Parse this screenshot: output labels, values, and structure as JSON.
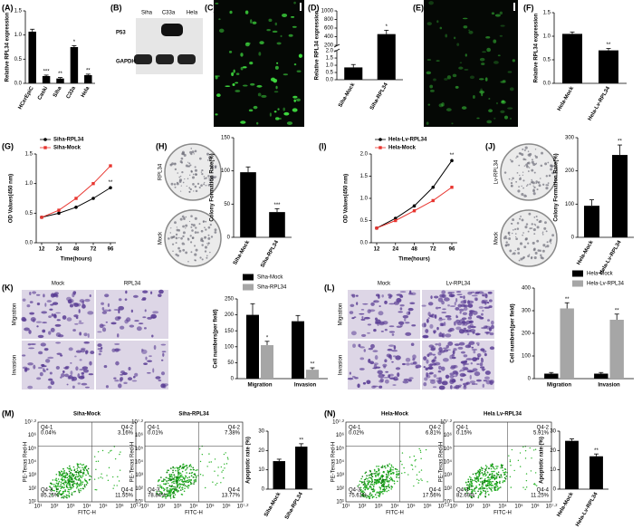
{
  "figure": {
    "panel_labels": [
      "(A)",
      "(B)",
      "(C)",
      "(D)",
      "(E)",
      "(F)",
      "(G)",
      "(H)",
      "(I)",
      "(J)",
      "(K)",
      "(L)",
      "(M)",
      "(N)"
    ],
    "western_blot": {
      "lanes": [
        "Siha",
        "C33a",
        "Hela"
      ],
      "proteins": [
        "P53",
        "GAPDH"
      ]
    },
    "colony_images": [
      {
        "labels": [
          "RPL34",
          "Mock"
        ]
      },
      {
        "labels": [
          "Lv-RPL34",
          "Mock"
        ]
      }
    ],
    "transwell": [
      {
        "columns": [
          "Mock",
          "RPL34"
        ],
        "rows": [
          "Migration",
          "Invasion"
        ]
      },
      {
        "columns": [
          "Mock",
          "Lv-RPL34"
        ],
        "rows": [
          "Migration",
          "Invasion"
        ]
      }
    ],
    "flow": {
      "x_label": "FITC-H",
      "y_label": "PE-Texas Red-H",
      "tick_labels": [
        "10¹",
        "10²",
        "10³",
        "10⁴",
        "10⁵",
        "10⁶",
        "10⁷·²"
      ],
      "plots": [
        {
          "title": "Siha-Mock",
          "quadrants": [
            {
              "name": "Q4-1",
              "value": "0.04%"
            },
            {
              "name": "Q4-2",
              "value": "3.16%"
            },
            {
              "name": "Q4-3",
              "value": "85.25%"
            },
            {
              "name": "Q4-4",
              "value": "11.55%"
            }
          ]
        },
        {
          "title": "Siha-RPL34",
          "quadrants": [
            {
              "name": "Q4-1",
              "value": "0.01%"
            },
            {
              "name": "Q4-2",
              "value": "7.38%"
            },
            {
              "name": "Q4-3",
              "value": "78.84%"
            },
            {
              "name": "Q4-4",
              "value": "13.77%"
            }
          ]
        },
        {
          "title": "Hela-Mock",
          "quadrants": [
            {
              "name": "Q4-1",
              "value": "0.02%"
            },
            {
              "name": "Q4-2",
              "value": "6.81%"
            },
            {
              "name": "Q4-3",
              "value": "75.61%"
            },
            {
              "name": "Q4-4",
              "value": "17.56%"
            }
          ]
        },
        {
          "title": "Hela Lv-RPL34",
          "quadrants": [
            {
              "name": "Q4-1",
              "value": "0.15%"
            },
            {
              "name": "Q4-2",
              "value": "5.91%"
            },
            {
              "name": "Q4-3",
              "value": "82.69%"
            },
            {
              "name": "Q4-4",
              "value": "11.25%"
            }
          ]
        }
      ]
    }
  },
  "chart_data": [
    {
      "type": "bar",
      "y_label": "Relative RPL34 expression",
      "categories": [
        "HCerEpiC",
        "Caski",
        "Siha",
        "C33a",
        "Hela"
      ],
      "values": [
        1.07,
        0.15,
        0.1,
        0.75,
        0.17
      ],
      "errors": [
        0.05,
        0.02,
        0.02,
        0.03,
        0.02
      ],
      "annotations": [
        null,
        "***",
        "**",
        "*",
        "**"
      ],
      "color": "#000000",
      "ylim": [
        0,
        1.5
      ],
      "yticks": [
        {
          "value": 0,
          "label": "0.0"
        },
        0.5,
        {
          "value": 1,
          "label": "1.0"
        },
        1.5
      ]
    },
    {
      "type": "bar",
      "y_label": "Relative RPL34 expression",
      "categories": [
        "Siha-Mock",
        "Siha-RPL34"
      ],
      "values": [
        0.85,
        460
      ],
      "errors": [
        0.2,
        90
      ],
      "annotations": [
        null,
        "*"
      ],
      "color": "#000000",
      "ylim": [
        0,
        1000
      ],
      "ybreak": [
        2,
        200
      ],
      "yticks": [
        {
          "value": 0,
          "label": "0.0"
        },
        0.5,
        {
          "value": 1,
          "label": "1.0"
        },
        1.5,
        {
          "value": 2,
          "label": "2.0"
        },
        200,
        400,
        600,
        800,
        1000
      ]
    },
    {
      "type": "bar",
      "y_label": "Relative RPL34 expression",
      "categories": [
        "Hela-Mock",
        "Hela-Lv-RPL34"
      ],
      "values": [
        1.05,
        0.7
      ],
      "errors": [
        0.04,
        0.04
      ],
      "annotations": [
        null,
        "**"
      ],
      "color": "#000000",
      "ylim": [
        0,
        1.5
      ],
      "yticks": [
        {
          "value": 0,
          "label": "0.0"
        },
        0.5,
        {
          "value": 1,
          "label": "1.0"
        },
        1.5
      ]
    },
    {
      "type": "line",
      "y_label": "OD Values(450 nm)",
      "x_label": "Time(hours)",
      "categories": [
        "12",
        "24",
        "48",
        "72",
        "96"
      ],
      "series": [
        {
          "name": "Siha-RPL34",
          "color": "#000000",
          "values": [
            0.43,
            0.5,
            0.6,
            0.75,
            0.93
          ]
        },
        {
          "name": "Siha-Mock",
          "color": "#e8352f",
          "values": [
            0.43,
            0.55,
            0.75,
            1.0,
            1.3
          ]
        }
      ],
      "annotation": "**",
      "ylim": [
        0,
        1.5
      ],
      "yticks": [
        {
          "value": 0,
          "label": "0.0"
        },
        0.5,
        {
          "value": 1,
          "label": "1.0"
        },
        1.5
      ]
    },
    {
      "type": "bar",
      "y_label": "Colony Formation Rate(%)",
      "categories": [
        "Siha-Mock",
        "Siha-RPL34"
      ],
      "values": [
        98,
        38
      ],
      "errors": [
        8,
        5
      ],
      "annotations": [
        null,
        "***"
      ],
      "color": "#000000",
      "ylim": [
        0,
        150
      ],
      "yticks": [
        0,
        50,
        100,
        150
      ]
    },
    {
      "type": "line",
      "y_label": "OD Values(450 nm)",
      "x_label": "Time(hours)",
      "categories": [
        "12",
        "24",
        "48",
        "72",
        "96"
      ],
      "series": [
        {
          "name": "Hela-Lv-RPL34",
          "color": "#000000",
          "values": [
            0.33,
            0.55,
            0.83,
            1.25,
            1.85
          ]
        },
        {
          "name": "Hela-Mock",
          "color": "#e8352f",
          "values": [
            0.33,
            0.5,
            0.72,
            0.95,
            1.25
          ]
        }
      ],
      "annotation": "**",
      "ylim": [
        0,
        2
      ],
      "yticks": [
        {
          "value": 0,
          "label": "0.0"
        },
        0.5,
        {
          "value": 1,
          "label": "1.0"
        },
        1.5,
        {
          "value": 2,
          "label": "2.0"
        }
      ]
    },
    {
      "type": "bar",
      "y_label": "Colony Formation Rate(%)",
      "categories": [
        "Hela-Mock",
        "Hela-Lv-RPL34"
      ],
      "values": [
        95,
        248
      ],
      "errors": [
        18,
        30
      ],
      "annotations": [
        null,
        "**"
      ],
      "color": "#000000",
      "ylim": [
        0,
        300
      ],
      "yticks": [
        0,
        100,
        200,
        300
      ]
    },
    {
      "type": "grouped-bar",
      "y_label": "Cell numbers(per field)",
      "categories": [
        "Migration",
        "Invasion"
      ],
      "series": [
        {
          "name": "Siha-Mock",
          "color": "#000000",
          "values": [
            200,
            180
          ],
          "errors": [
            35,
            18
          ]
        },
        {
          "name": "Siha-RPL34",
          "color": "#a6a6a6",
          "values": [
            105,
            28
          ],
          "errors": [
            12,
            6
          ],
          "annotations": [
            "*",
            "**"
          ]
        }
      ],
      "ylim": [
        0,
        250
      ],
      "yticks": [
        0,
        50,
        100,
        150,
        200,
        250
      ]
    },
    {
      "type": "grouped-bar",
      "y_label": "Cell numbers(per field)",
      "categories": [
        "Migration",
        "Invasion"
      ],
      "series": [
        {
          "name": "Hela-Mock",
          "color": "#000000",
          "values": [
            22,
            22
          ],
          "errors": [
            5,
            5
          ]
        },
        {
          "name": "Hela-Lv-RPL34",
          "color": "#a6a6a6",
          "values": [
            310,
            260
          ],
          "errors": [
            25,
            25
          ],
          "annotations": [
            "**",
            "**"
          ]
        }
      ],
      "ylim": [
        0,
        400
      ],
      "yticks": [
        0,
        100,
        200,
        300,
        400
      ]
    },
    {
      "type": "bar",
      "y_label": "Apoptotic rate (%)",
      "categories": [
        "Siha-Mock",
        "Siha-RPL34"
      ],
      "values": [
        14.5,
        22
      ],
      "errors": [
        1,
        1.5
      ],
      "annotations": [
        null,
        "**"
      ],
      "color": "#000000",
      "ylim": [
        0,
        30
      ],
      "yticks": [
        0,
        10,
        20,
        30
      ]
    },
    {
      "type": "bar",
      "y_label": "Apoptotic rate (%)",
      "categories": [
        "Hela-Mock",
        "Hela-Lv-RPL34"
      ],
      "values": [
        25,
        17
      ],
      "errors": [
        1,
        1.2
      ],
      "annotations": [
        null,
        "**"
      ],
      "color": "#000000",
      "ylim": [
        0,
        30
      ],
      "yticks": [
        0,
        10,
        20,
        30
      ]
    }
  ]
}
